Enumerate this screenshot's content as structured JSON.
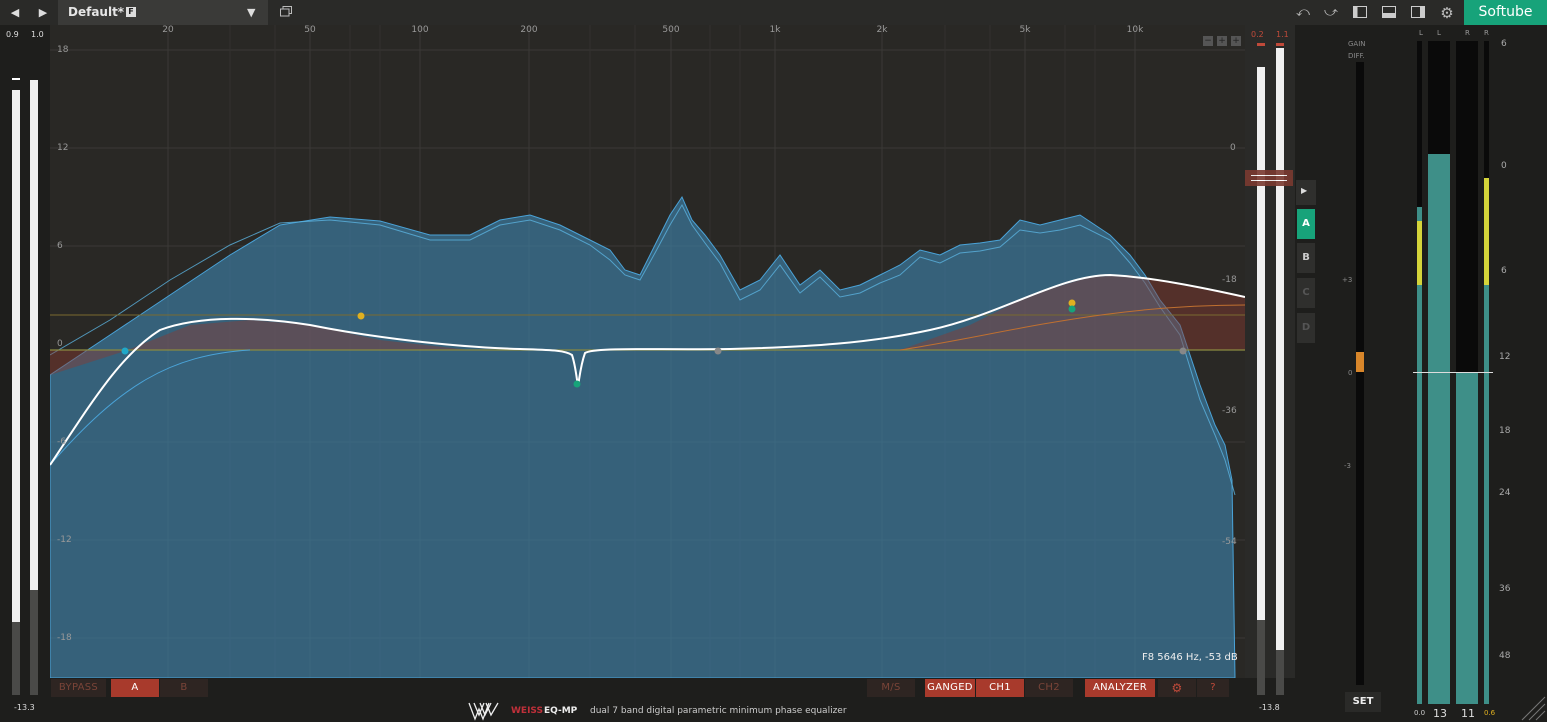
{
  "topbar": {
    "back_icon": "◀",
    "forward_icon": "▶",
    "preset_name": "Default*",
    "preset_flag": "F",
    "preset_dropdown_icon": "▼",
    "undo_icon": "⤺",
    "redo_icon": "⤻",
    "brand": "Softube"
  },
  "left_meters": {
    "label_left": "0.9",
    "label_right": "1.0",
    "bottom_value": "-13.3",
    "levels": [
      0.88,
      0.83
    ]
  },
  "right_graph_meters": {
    "label_left": "0.2",
    "label_right": "1.1",
    "bottom_value": "-13.8",
    "levels": [
      0.88,
      0.93
    ]
  },
  "graph": {
    "freq_ticks": [
      "20",
      "50",
      "100",
      "200",
      "500",
      "1k",
      "2k",
      "5k",
      "10k"
    ],
    "gain_ticks_left": [
      "18",
      "12",
      "6",
      "0",
      "-6",
      "-12",
      "-18"
    ],
    "gain_ticks_right": [
      "0",
      "-18",
      "-36",
      "-54"
    ],
    "zoom_icons": [
      "−",
      "+",
      "+"
    ],
    "readout": "F8 5646 Hz, -53 dB",
    "colors": {
      "analyzer": "#3a8bc4",
      "curve": "#ffffff",
      "band_teal": "#17a37a",
      "band_yellow": "#e0b020",
      "band_grey": "#888888"
    }
  },
  "bottom": {
    "bypass": "BYPASS",
    "a": "A",
    "b": "B",
    "ms": "M/S",
    "ganged": "GANGED",
    "ch1": "CH1",
    "ch2": "CH2",
    "analyzer": "ANALYZER",
    "settings_icon": "⚙",
    "help": "?",
    "brand_weiss": "WEISS",
    "brand_eq": "EQ-MP",
    "description": "dual 7 band digital parametric minimum phase equalizer"
  },
  "ab_panel": {
    "play_icon": "▶",
    "slots": [
      "A",
      "B",
      "C",
      "D"
    ],
    "active": "A"
  },
  "gain_diff": {
    "label1": "GAIN",
    "label2": "DIFF.",
    "ticks": [
      "+3",
      "0",
      "-3"
    ],
    "set": "SET"
  },
  "output_meters": {
    "channel_labels": [
      "L",
      "L",
      "R",
      "R"
    ],
    "scale": [
      "6",
      "0",
      "6",
      "12",
      "18",
      "24",
      "36",
      "48"
    ],
    "left_value": "0.0",
    "right_value": "0.6",
    "left_reading": "13",
    "right_reading": "11",
    "levels": [
      0.75,
      0.83,
      0.5,
      0.75
    ]
  }
}
